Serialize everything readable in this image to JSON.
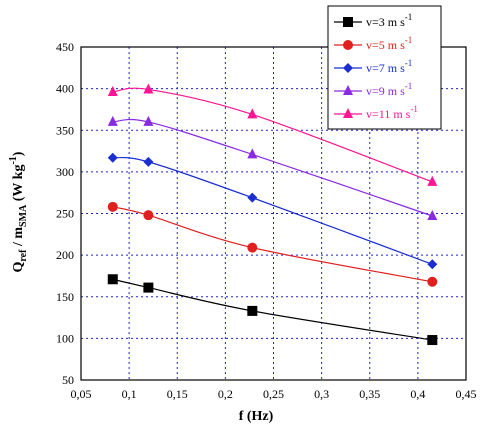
{
  "chart_data": {
    "type": "line",
    "xlabel": "f (Hz)",
    "ylabel": {
      "main": "Q",
      "sub1": "ref",
      "mid": " / m",
      "sub2": "SMA",
      "unit": " (W kg",
      "sup": "-1",
      "close": ")"
    },
    "xlim": [
      0.05,
      0.45
    ],
    "ylim": [
      50,
      450
    ],
    "x_ticks": [
      0.05,
      0.1,
      0.15,
      0.2,
      0.25,
      0.3,
      0.35,
      0.4,
      0.45
    ],
    "x_tick_labels": [
      "0,05",
      "0,1",
      "0,15",
      "0,2",
      "0,25",
      "0,3",
      "0,35",
      "0,4",
      "0,45"
    ],
    "y_ticks": [
      50,
      100,
      150,
      200,
      250,
      300,
      350,
      400,
      450
    ],
    "y_tick_labels": [
      "50",
      "100",
      "150",
      "200",
      "250",
      "300",
      "350",
      "400",
      "450"
    ],
    "grid": true,
    "legend_position": "top-right",
    "series": [
      {
        "name": "v=3 m s",
        "sup": "-1",
        "color": "#000000",
        "marker": "square",
        "x": [
          0.083,
          0.12,
          0.228,
          0.415
        ],
        "y": [
          171,
          161,
          133,
          98
        ]
      },
      {
        "name": "v=5 m s",
        "sup": "-1",
        "color": "#e0201e",
        "marker": "circle",
        "x": [
          0.083,
          0.12,
          0.228,
          0.415
        ],
        "y": [
          258,
          248,
          209,
          168
        ]
      },
      {
        "name": "v=7 m s",
        "sup": "-1",
        "color": "#1b2fd0",
        "marker": "diamond",
        "x": [
          0.083,
          0.12,
          0.228,
          0.415
        ],
        "y": [
          317,
          312,
          269,
          189
        ]
      },
      {
        "name": "v=9 m s",
        "sup": "-1",
        "color": "#8a2be2",
        "marker": "triangle",
        "x": [
          0.083,
          0.12,
          0.228,
          0.415
        ],
        "y": [
          360,
          360,
          321,
          247
        ]
      },
      {
        "name": "v=11 m s",
        "sup": "-1",
        "color": "#ff1493",
        "marker": "triangle",
        "x": [
          0.083,
          0.12,
          0.228,
          0.415
        ],
        "y": [
          396,
          399,
          369,
          288
        ]
      }
    ]
  }
}
